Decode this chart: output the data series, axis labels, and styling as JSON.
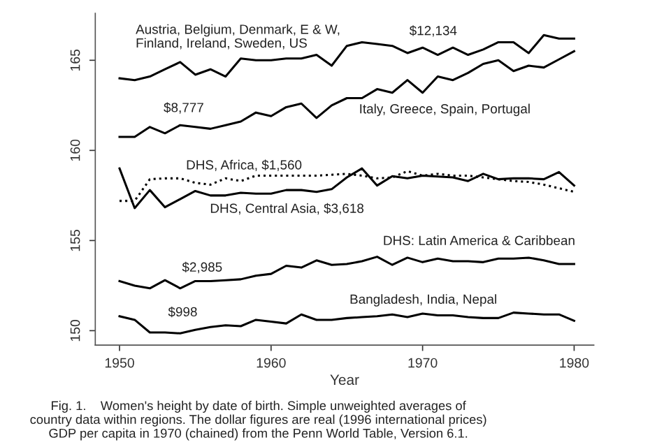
{
  "chart_data": {
    "type": "line",
    "xlabel": "Year",
    "x": [
      1950,
      1951,
      1952,
      1953,
      1954,
      1955,
      1956,
      1957,
      1958,
      1959,
      1960,
      1961,
      1962,
      1963,
      1964,
      1965,
      1966,
      1967,
      1968,
      1969,
      1970,
      1971,
      1972,
      1973,
      1974,
      1975,
      1976,
      1977,
      1978,
      1979,
      1980
    ],
    "series": [
      {
        "color": "#000000",
        "line_style": "solid",
        "values": [
          164.0,
          163.9,
          164.1,
          164.5,
          164.9,
          164.2,
          164.5,
          164.1,
          165.1,
          165.0,
          165.0,
          165.1,
          165.1,
          165.3,
          164.7,
          165.8,
          166.0,
          165.9,
          165.8,
          165.4,
          165.7,
          165.3,
          165.7,
          165.3,
          165.6,
          166.0,
          166.0,
          165.4,
          166.4,
          166.2,
          166.2
        ]
      },
      {
        "color": "#000000",
        "line_style": "solid",
        "values": [
          160.75,
          160.75,
          161.3,
          160.95,
          161.4,
          161.3,
          161.2,
          161.4,
          161.6,
          162.1,
          161.9,
          162.4,
          162.6,
          161.8,
          162.5,
          162.9,
          162.9,
          163.4,
          163.2,
          163.9,
          163.2,
          164.1,
          163.9,
          164.3,
          164.8,
          165.0,
          164.4,
          164.7,
          164.6,
          165.05,
          165.5
        ]
      },
      {
        "color": "#000000",
        "line_style": "dotted",
        "values": [
          157.2,
          157.2,
          158.4,
          158.45,
          158.45,
          158.2,
          158.1,
          158.45,
          158.3,
          158.6,
          158.6,
          158.6,
          158.6,
          158.6,
          158.65,
          158.7,
          158.6,
          158.45,
          158.5,
          158.85,
          158.6,
          158.7,
          158.6,
          158.6,
          158.5,
          158.4,
          158.3,
          158.25,
          158.1,
          157.9,
          157.7
        ]
      },
      {
        "color": "#000000",
        "line_style": "solid",
        "values": [
          159.0,
          156.8,
          157.8,
          156.85,
          157.3,
          157.75,
          157.5,
          157.5,
          157.65,
          157.6,
          157.6,
          157.8,
          157.8,
          157.7,
          157.85,
          158.5,
          159.0,
          158.05,
          158.57,
          158.45,
          158.6,
          158.55,
          158.5,
          158.3,
          158.7,
          158.4,
          158.45,
          158.45,
          158.4,
          158.8,
          158.05
        ]
      },
      {
        "color": "#000000",
        "line_style": "solid",
        "values": [
          152.75,
          152.5,
          152.35,
          152.8,
          152.35,
          152.75,
          152.75,
          152.8,
          152.85,
          153.05,
          153.15,
          153.6,
          153.5,
          153.9,
          153.65,
          153.7,
          153.85,
          154.1,
          153.65,
          154.05,
          153.8,
          154.0,
          153.85,
          153.85,
          153.8,
          154.0,
          154.0,
          154.05,
          153.9,
          153.7,
          153.7
        ]
      },
      {
        "color": "#000000",
        "line_style": "solid",
        "values": [
          150.8,
          150.6,
          149.9,
          149.9,
          149.85,
          150.05,
          150.2,
          150.3,
          150.25,
          150.6,
          150.5,
          150.4,
          150.9,
          150.6,
          150.6,
          150.7,
          150.75,
          150.8,
          150.9,
          150.75,
          150.95,
          150.85,
          150.85,
          150.75,
          150.7,
          150.7,
          151.0,
          150.95,
          150.9,
          150.9,
          150.55
        ]
      }
    ],
    "xlim": [
      1948.4,
      1981.3
    ],
    "ylim": [
      149.2,
      167.6
    ],
    "xticks": [
      1950,
      1960,
      1970,
      1980
    ],
    "yticks": [
      150,
      155,
      160,
      165
    ],
    "grid": false,
    "legend": false,
    "marker": "none",
    "annotations": [
      "Austria, Belgium, Denmark, E & W,\nFinland, Ireland, Sweden, US",
      "$12,134",
      "$8,777",
      "Italy, Greece, Spain, Portugal",
      "DHS, Africa, $1,560",
      "DHS, Central Asia, $3,618",
      "DHS: Latin America & Caribbean",
      "$2,985",
      "Bangladesh, India, Nepal",
      "$998",
      "Fig. 1.    Women's height by date of birth. Simple unweighted averages of\ncountry data within regions. The dollar figures are real (1996 international prices)\nGDP per capita in 1970 (chained) from the Penn World Table, Version 6.1."
    ]
  }
}
